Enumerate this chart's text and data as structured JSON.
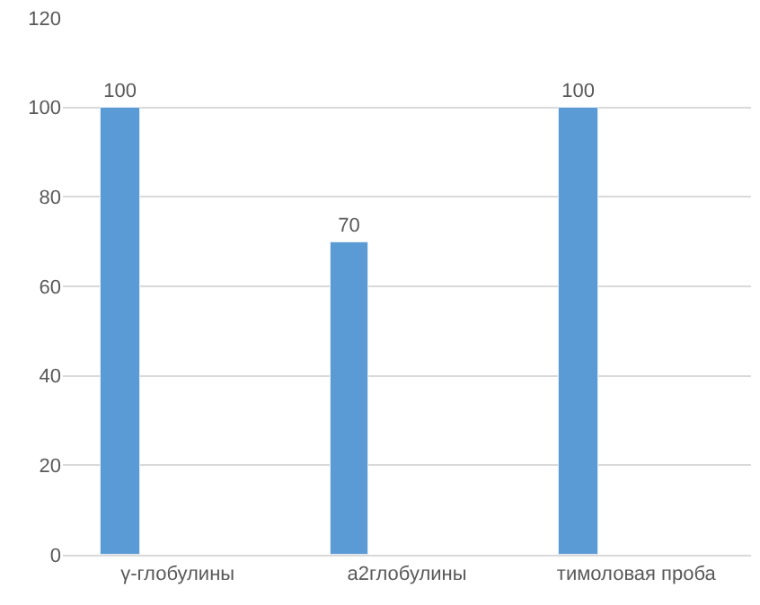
{
  "chart_data": {
    "type": "bar",
    "categories": [
      "γ-глобулины",
      "а2глобулины",
      "тимоловая проба"
    ],
    "values": [
      100,
      70,
      100
    ],
    "color": "#5b9bd5",
    "ylim": [
      0,
      120
    ],
    "yticks": [
      0,
      20,
      40,
      60,
      80,
      100,
      120
    ],
    "grid": "y",
    "data_labels": true
  }
}
